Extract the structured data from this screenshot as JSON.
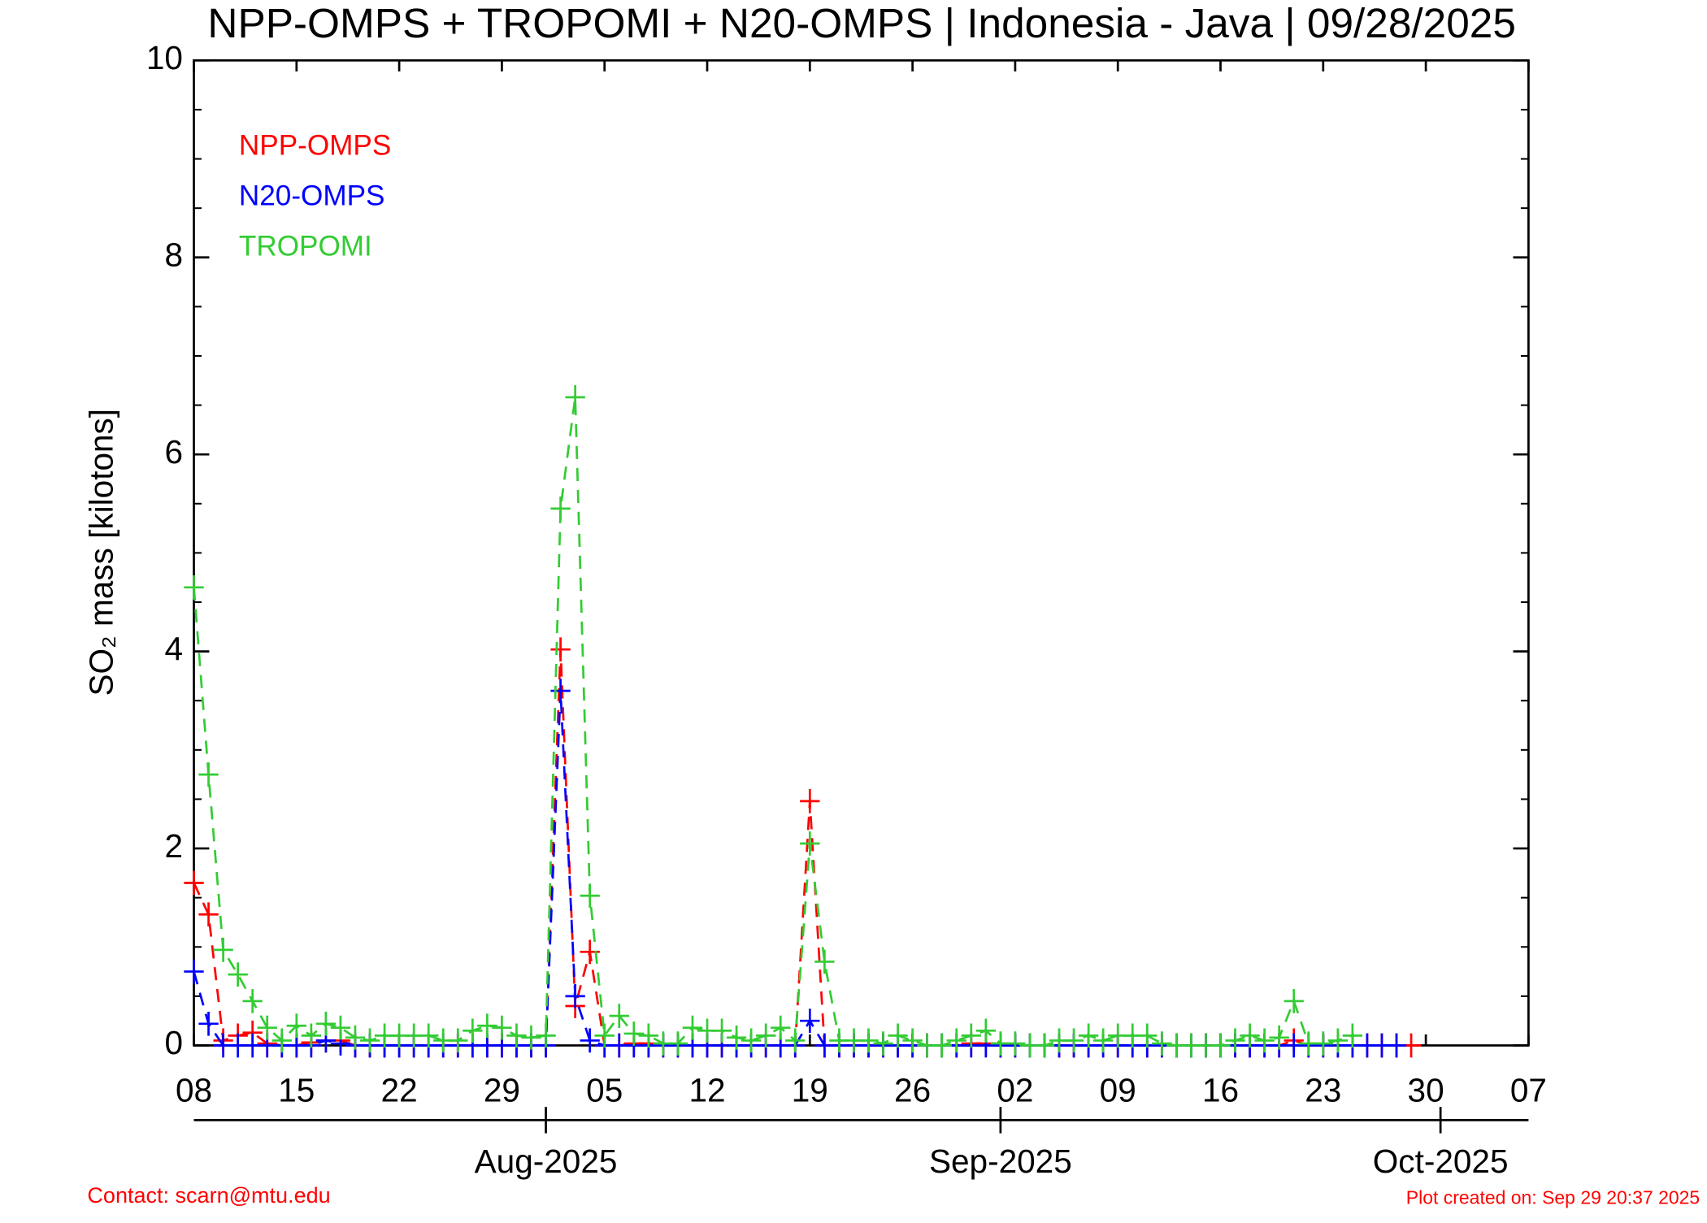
{
  "chart_data": {
    "type": "line",
    "title": "NPP-OMPS + TROPOMI + N20-OMPS | Indonesia - Java | 09/28/2025",
    "y_label": "SO₂ mass [kilotons]",
    "contact": "Contact: scarn@mtu.edu",
    "created": "Plot created on: Sep 29 20:37 2025",
    "x": [
      "2025-07-08",
      "2025-07-09",
      "2025-07-10",
      "2025-07-11",
      "2025-07-12",
      "2025-07-13",
      "2025-07-14",
      "2025-07-15",
      "2025-07-16",
      "2025-07-17",
      "2025-07-18",
      "2025-07-19",
      "2025-07-20",
      "2025-07-21",
      "2025-07-22",
      "2025-07-23",
      "2025-07-24",
      "2025-07-25",
      "2025-07-26",
      "2025-07-27",
      "2025-07-28",
      "2025-07-29",
      "2025-07-30",
      "2025-07-31",
      "2025-08-01",
      "2025-08-02",
      "2025-08-03",
      "2025-08-04",
      "2025-08-05",
      "2025-08-06",
      "2025-08-07",
      "2025-08-08",
      "2025-08-09",
      "2025-08-10",
      "2025-08-11",
      "2025-08-12",
      "2025-08-13",
      "2025-08-14",
      "2025-08-15",
      "2025-08-16",
      "2025-08-17",
      "2025-08-18",
      "2025-08-19",
      "2025-08-20",
      "2025-08-21",
      "2025-08-22",
      "2025-08-23",
      "2025-08-24",
      "2025-08-25",
      "2025-08-26",
      "2025-08-27",
      "2025-08-28",
      "2025-08-29",
      "2025-08-30",
      "2025-08-31",
      "2025-09-01",
      "2025-09-02",
      "2025-09-03",
      "2025-09-04",
      "2025-09-05",
      "2025-09-06",
      "2025-09-07",
      "2025-09-08",
      "2025-09-09",
      "2025-09-10",
      "2025-09-11",
      "2025-09-12",
      "2025-09-13",
      "2025-09-14",
      "2025-09-15",
      "2025-09-16",
      "2025-09-17",
      "2025-09-18",
      "2025-09-19",
      "2025-09-20",
      "2025-09-21",
      "2025-09-22",
      "2025-09-23",
      "2025-09-24",
      "2025-09-25",
      "2025-09-26",
      "2025-09-27",
      "2025-09-28",
      "2025-09-29"
    ],
    "series": [
      {
        "name": "NPP-OMPS",
        "color": "#ff0000",
        "values": [
          1.65,
          1.33,
          0.05,
          0.1,
          0.13,
          0.02,
          0,
          0,
          0.03,
          0.05,
          0.05,
          0,
          0,
          0,
          0,
          0,
          0,
          0,
          0,
          0,
          0,
          0,
          0,
          0,
          0,
          4.02,
          0.4,
          0.95,
          0,
          0,
          0.02,
          0.02,
          0,
          0,
          0,
          0,
          0,
          0,
          0,
          0,
          0,
          0,
          2.48,
          0,
          0,
          0,
          0,
          0,
          0,
          0,
          0,
          0,
          0,
          0.02,
          0.02,
          0,
          0,
          0,
          0,
          0,
          0,
          0,
          0,
          0,
          0,
          0,
          0,
          0,
          0,
          0,
          0,
          0,
          0,
          0,
          0,
          0.05,
          0,
          0,
          0,
          0,
          0,
          0,
          0,
          0
        ]
      },
      {
        "name": "N20-OMPS",
        "color": "#0000ff",
        "values": [
          0.75,
          0.22,
          0,
          0,
          0,
          0,
          0,
          0,
          0,
          0.05,
          0.02,
          0,
          0,
          0,
          0,
          0,
          0,
          0,
          0,
          0,
          0,
          0,
          0,
          0,
          0,
          3.6,
          0.5,
          0.05,
          0,
          0,
          0,
          0,
          0,
          0,
          0,
          0,
          0,
          0,
          0,
          0,
          0,
          0,
          0.25,
          0,
          0,
          0,
          0,
          0,
          0,
          0,
          0,
          0,
          0,
          0,
          0,
          0,
          0,
          0,
          0,
          0,
          0,
          0,
          0,
          0,
          0,
          0,
          0,
          0,
          0,
          0,
          0,
          0,
          0,
          0,
          0,
          0,
          0,
          0,
          0,
          0,
          0,
          0,
          0,
          null
        ]
      },
      {
        "name": "TROPOMI",
        "color": "#33cc33",
        "values": [
          4.65,
          2.75,
          0.97,
          0.72,
          0.45,
          0.18,
          0.05,
          0.2,
          0.1,
          0.22,
          0.18,
          0.08,
          0.05,
          0.1,
          0.1,
          0.1,
          0.1,
          0.05,
          0.05,
          0.15,
          0.2,
          0.18,
          0.1,
          0.08,
          0.1,
          5.45,
          6.58,
          1.52,
          0.1,
          0.3,
          0.12,
          0.1,
          0.02,
          0.02,
          0.18,
          0.15,
          0.15,
          0.08,
          0.05,
          0.1,
          0.18,
          0.05,
          2.05,
          0.85,
          0.05,
          0.05,
          0.05,
          0.02,
          0.1,
          0.05,
          0,
          0,
          0.05,
          0.1,
          0.15,
          0.02,
          0.02,
          0,
          0,
          0.05,
          0.05,
          0.1,
          0.05,
          0.1,
          0.1,
          0.1,
          0.02,
          0,
          0,
          0,
          0,
          0.05,
          0.1,
          0.05,
          0.08,
          0.45,
          0.02,
          0.02,
          0.05,
          0.1,
          null,
          null,
          null,
          null
        ]
      }
    ],
    "xlim": [
      "2025-07-08",
      "2025-10-07"
    ],
    "xticks": [
      {
        "value": "2025-07-08",
        "label": "08"
      },
      {
        "value": "2025-07-15",
        "label": "15"
      },
      {
        "value": "2025-07-22",
        "label": "22"
      },
      {
        "value": "2025-07-29",
        "label": "29"
      },
      {
        "value": "2025-08-05",
        "label": "05"
      },
      {
        "value": "2025-08-12",
        "label": "12"
      },
      {
        "value": "2025-08-19",
        "label": "19"
      },
      {
        "value": "2025-08-26",
        "label": "26"
      },
      {
        "value": "2025-09-02",
        "label": "02"
      },
      {
        "value": "2025-09-09",
        "label": "09"
      },
      {
        "value": "2025-09-16",
        "label": "16"
      },
      {
        "value": "2025-09-23",
        "label": "23"
      },
      {
        "value": "2025-09-30",
        "label": "30"
      },
      {
        "value": "2025-10-07",
        "label": "07"
      }
    ],
    "month_ticks": [
      {
        "value": "2025-08-01",
        "label": "Aug-2025"
      },
      {
        "value": "2025-09-01",
        "label": "Sep-2025"
      },
      {
        "value": "2025-10-01",
        "label": "Oct-2025"
      }
    ],
    "ylim": [
      0,
      10
    ],
    "yticks": [
      0,
      2,
      4,
      6,
      8,
      10
    ],
    "legend": "top-left"
  }
}
